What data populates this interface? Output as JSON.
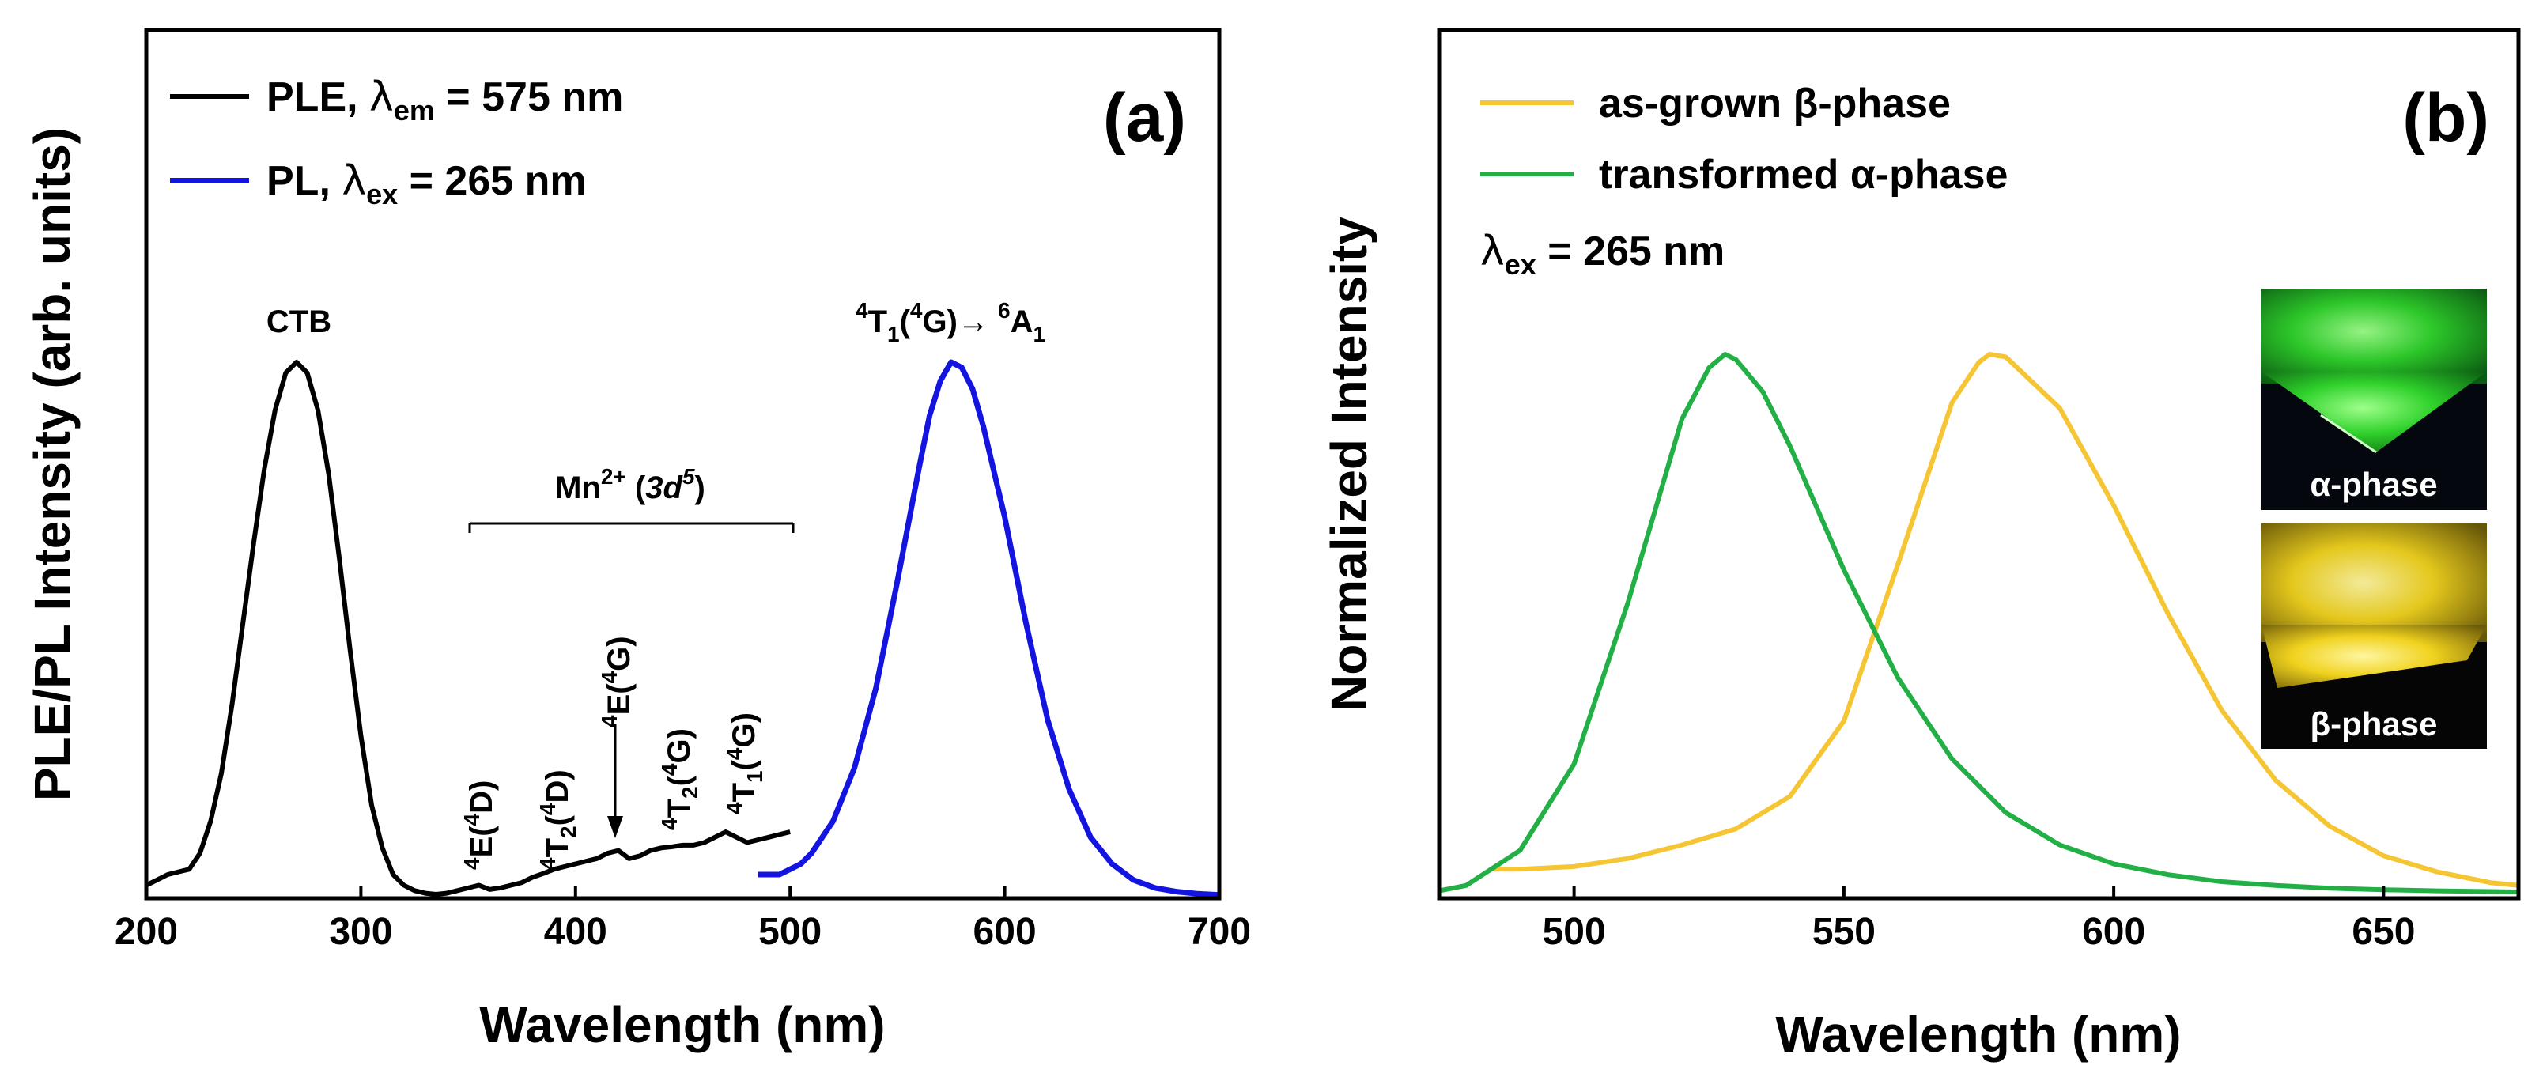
{
  "chart_data": [
    {
      "panel": "(a)",
      "type": "line",
      "xlabel": "Wavelength (nm)",
      "ylabel": "PLE/PL Intensity (arb. units)",
      "xlim": [
        200,
        700
      ],
      "ylim": [
        0,
        1.0
      ],
      "xticks": [
        200,
        300,
        400,
        500,
        600,
        700
      ],
      "yticks_visible": false,
      "legend_position": "top-left",
      "series": [
        {
          "name": "PLE",
          "legend": {
            "prefix": "PLE, ",
            "symbol": "λ",
            "sub": "em",
            "suffix": " = 575 nm"
          },
          "color": "#000000",
          "x": [
            200,
            205,
            210,
            215,
            220,
            225,
            230,
            235,
            240,
            245,
            250,
            255,
            260,
            265,
            270,
            275,
            280,
            285,
            290,
            295,
            300,
            305,
            310,
            315,
            320,
            325,
            330,
            335,
            340,
            345,
            350,
            355,
            360,
            365,
            370,
            375,
            380,
            385,
            390,
            395,
            400,
            405,
            410,
            415,
            420,
            425,
            430,
            435,
            440,
            445,
            450,
            455,
            460,
            465,
            470,
            475,
            480,
            485,
            490,
            495,
            500
          ],
          "y": [
            0.02,
            0.03,
            0.04,
            0.045,
            0.05,
            0.08,
            0.14,
            0.23,
            0.36,
            0.51,
            0.66,
            0.8,
            0.91,
            0.98,
            1.0,
            0.98,
            0.91,
            0.79,
            0.63,
            0.46,
            0.3,
            0.17,
            0.09,
            0.04,
            0.02,
            0.01,
            0.005,
            0.003,
            0.005,
            0.01,
            0.015,
            0.02,
            0.012,
            0.015,
            0.02,
            0.025,
            0.035,
            0.042,
            0.05,
            0.055,
            0.06,
            0.065,
            0.07,
            0.08,
            0.085,
            0.07,
            0.075,
            0.085,
            0.09,
            0.092,
            0.095,
            0.095,
            0.1,
            0.11,
            0.12,
            0.11,
            0.1,
            0.105,
            0.11,
            0.115,
            0.12
          ]
        },
        {
          "name": "PL",
          "legend": {
            "prefix": "PL, ",
            "symbol": "λ",
            "sub": "ex",
            "suffix": " = 265 nm"
          },
          "color": "#1414e0",
          "x": [
            485,
            495,
            500,
            505,
            510,
            520,
            530,
            540,
            550,
            560,
            565,
            570,
            575,
            580,
            585,
            590,
            600,
            610,
            620,
            630,
            640,
            650,
            660,
            670,
            680,
            690,
            700
          ],
          "y": [
            0.04,
            0.04,
            0.05,
            0.06,
            0.08,
            0.14,
            0.24,
            0.39,
            0.59,
            0.8,
            0.9,
            0.965,
            1.0,
            0.99,
            0.95,
            0.88,
            0.71,
            0.51,
            0.33,
            0.2,
            0.11,
            0.06,
            0.03,
            0.015,
            0.008,
            0.004,
            0.002
          ]
        }
      ],
      "annotations": {
        "ctb": "CTB",
        "mn_bracket": {
          "base": "Mn",
          "sup": "2+",
          "open": " (",
          "orb": "3d",
          "orb_sup": "5",
          "close": ")"
        },
        "pl_transition": {
          "s1": "4",
          "t1": "T",
          "sub1": "1",
          "p1": "(",
          "s2": "4",
          "t2": "G)→ ",
          "s3": "6",
          "t3": "A",
          "sub3": "1"
        },
        "levels": [
          {
            "sup1": "4",
            "term": "E",
            "paren": "(",
            "sup2": "4",
            "rest": "D)",
            "sub": ""
          },
          {
            "sup1": "4",
            "term": "T",
            "sub": "2",
            "paren": "(",
            "sup2": "4",
            "rest": "D)"
          },
          {
            "sup1": "4",
            "term": "E",
            "paren": "(",
            "sup2": "4",
            "rest": "G)",
            "sub": ""
          },
          {
            "sup1": "4",
            "term": "T",
            "sub": "2",
            "paren": "(",
            "sup2": "4",
            "rest": "G)"
          },
          {
            "sup1": "4",
            "term": "T",
            "sub": "1",
            "paren": "(",
            "sup2": "4",
            "rest": "G)"
          }
        ]
      }
    },
    {
      "panel": "(b)",
      "type": "line",
      "xlabel": "Wavelength (nm)",
      "ylabel": "Normalized Intensity",
      "xlim": [
        475,
        675
      ],
      "ylim": [
        0,
        1.0
      ],
      "xticks": [
        500,
        550,
        600,
        650
      ],
      "yticks_visible": false,
      "legend_position": "top-left",
      "excitation_note": {
        "symbol": "λ",
        "sub": "ex",
        "suffix": " = 265 nm"
      },
      "series": [
        {
          "name": "as-grown β-phase",
          "legend_text": "as-grown β-phase",
          "color": "#f5c533",
          "x": [
            485,
            490,
            500,
            510,
            520,
            530,
            540,
            550,
            560,
            570,
            575,
            577,
            580,
            590,
            600,
            610,
            620,
            630,
            640,
            650,
            660,
            670,
            675
          ],
          "y": [
            0.045,
            0.045,
            0.05,
            0.065,
            0.09,
            0.12,
            0.18,
            0.32,
            0.61,
            0.91,
            0.985,
            1.0,
            0.995,
            0.9,
            0.72,
            0.52,
            0.34,
            0.21,
            0.125,
            0.07,
            0.04,
            0.02,
            0.015
          ]
        },
        {
          "name": "transformed α-phase",
          "legend_text": "transformed α-phase",
          "color": "#22b046",
          "x": [
            475,
            480,
            490,
            500,
            510,
            520,
            525,
            528,
            530,
            535,
            540,
            550,
            560,
            570,
            580,
            590,
            600,
            610,
            620,
            630,
            640,
            650,
            660,
            675
          ],
          "y": [
            0.005,
            0.015,
            0.08,
            0.24,
            0.54,
            0.88,
            0.975,
            1.0,
            0.99,
            0.93,
            0.83,
            0.6,
            0.4,
            0.25,
            0.15,
            0.09,
            0.055,
            0.035,
            0.022,
            0.015,
            0.01,
            0.007,
            0.005,
            0.003
          ]
        }
      ],
      "inset_photos": [
        {
          "label": "α-phase",
          "tint": "#22c42e"
        },
        {
          "label": "β-phase",
          "tint": "#e8c21a"
        }
      ]
    }
  ]
}
